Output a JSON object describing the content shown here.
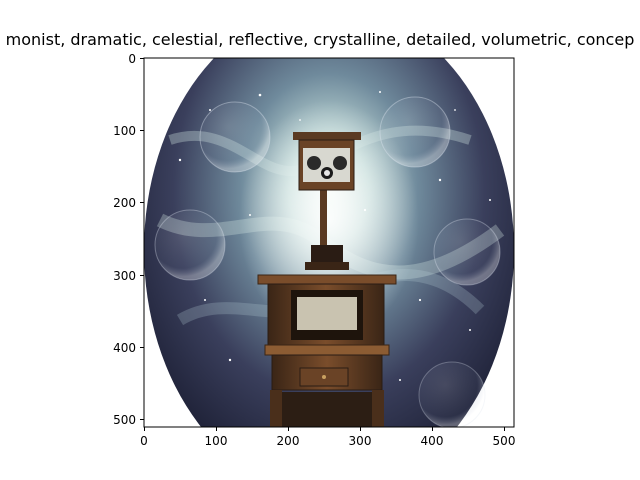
{
  "figure": {
    "title": "monist,  dramatic, celestial, reflective, crystalline, detailed, volumetric, concep"
  },
  "axes": {
    "x_ticks": [
      "0",
      "100",
      "200",
      "300",
      "400",
      "500"
    ],
    "y_ticks": [
      "0",
      "100",
      "200",
      "300",
      "400",
      "500"
    ]
  },
  "image": {
    "subject": "vintage box radio on a wooden stand inside a cosmic nebula oval",
    "colors": {
      "nebula_outer": "#2c2f4a",
      "nebula_mid": "#5a6f85",
      "nebula_glow": "#d8efe6",
      "wood_dark": "#3a2516",
      "wood_mid": "#6a4326",
      "wood_light": "#8c5c33"
    }
  }
}
